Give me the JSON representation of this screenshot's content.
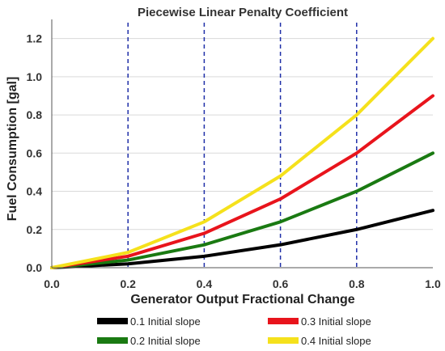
{
  "chart_data": {
    "type": "line",
    "title": "Piecewise Linear Penalty Coefficient",
    "xlabel": "Generator Output Fractional Change",
    "ylabel": "Fuel Consumption [gal]",
    "xlim": [
      0,
      1
    ],
    "ylim": [
      0,
      1.3
    ],
    "x_ticks": [
      0.0,
      0.2,
      0.4,
      0.6,
      0.8,
      1.0
    ],
    "x_tick_labels": [
      "0.0",
      "0.2",
      "0.4",
      "0.6",
      "0.8",
      "1.0"
    ],
    "y_ticks": [
      0.0,
      0.2,
      0.4,
      0.6,
      0.8,
      1.0,
      1.2
    ],
    "y_tick_labels": [
      "0.0",
      "0.2",
      "0.4",
      "0.6",
      "0.8",
      "1.0",
      "1.2"
    ],
    "grid": "horizontal",
    "vertical_reference_lines": [
      0.2,
      0.4,
      0.6,
      0.8
    ],
    "reference_line_color": "#1f2fa8",
    "legend_placement": "bottom",
    "x": [
      0.0,
      0.2,
      0.4,
      0.6,
      0.8,
      1.0
    ],
    "series": [
      {
        "name": "0.1 Initial slope",
        "color": "#000000",
        "values": [
          0.0,
          0.02,
          0.06,
          0.12,
          0.2,
          0.3
        ]
      },
      {
        "name": "0.2 Initial slope",
        "color": "#1a7a12",
        "values": [
          0.0,
          0.04,
          0.12,
          0.24,
          0.4,
          0.6
        ]
      },
      {
        "name": "0.3 Initial slope",
        "color": "#e8141c",
        "values": [
          0.0,
          0.06,
          0.18,
          0.36,
          0.6,
          0.9
        ]
      },
      {
        "name": "0.4 Initial slope",
        "color": "#f5e11c",
        "values": [
          0.0,
          0.08,
          0.24,
          0.48,
          0.8,
          1.2
        ]
      }
    ]
  }
}
